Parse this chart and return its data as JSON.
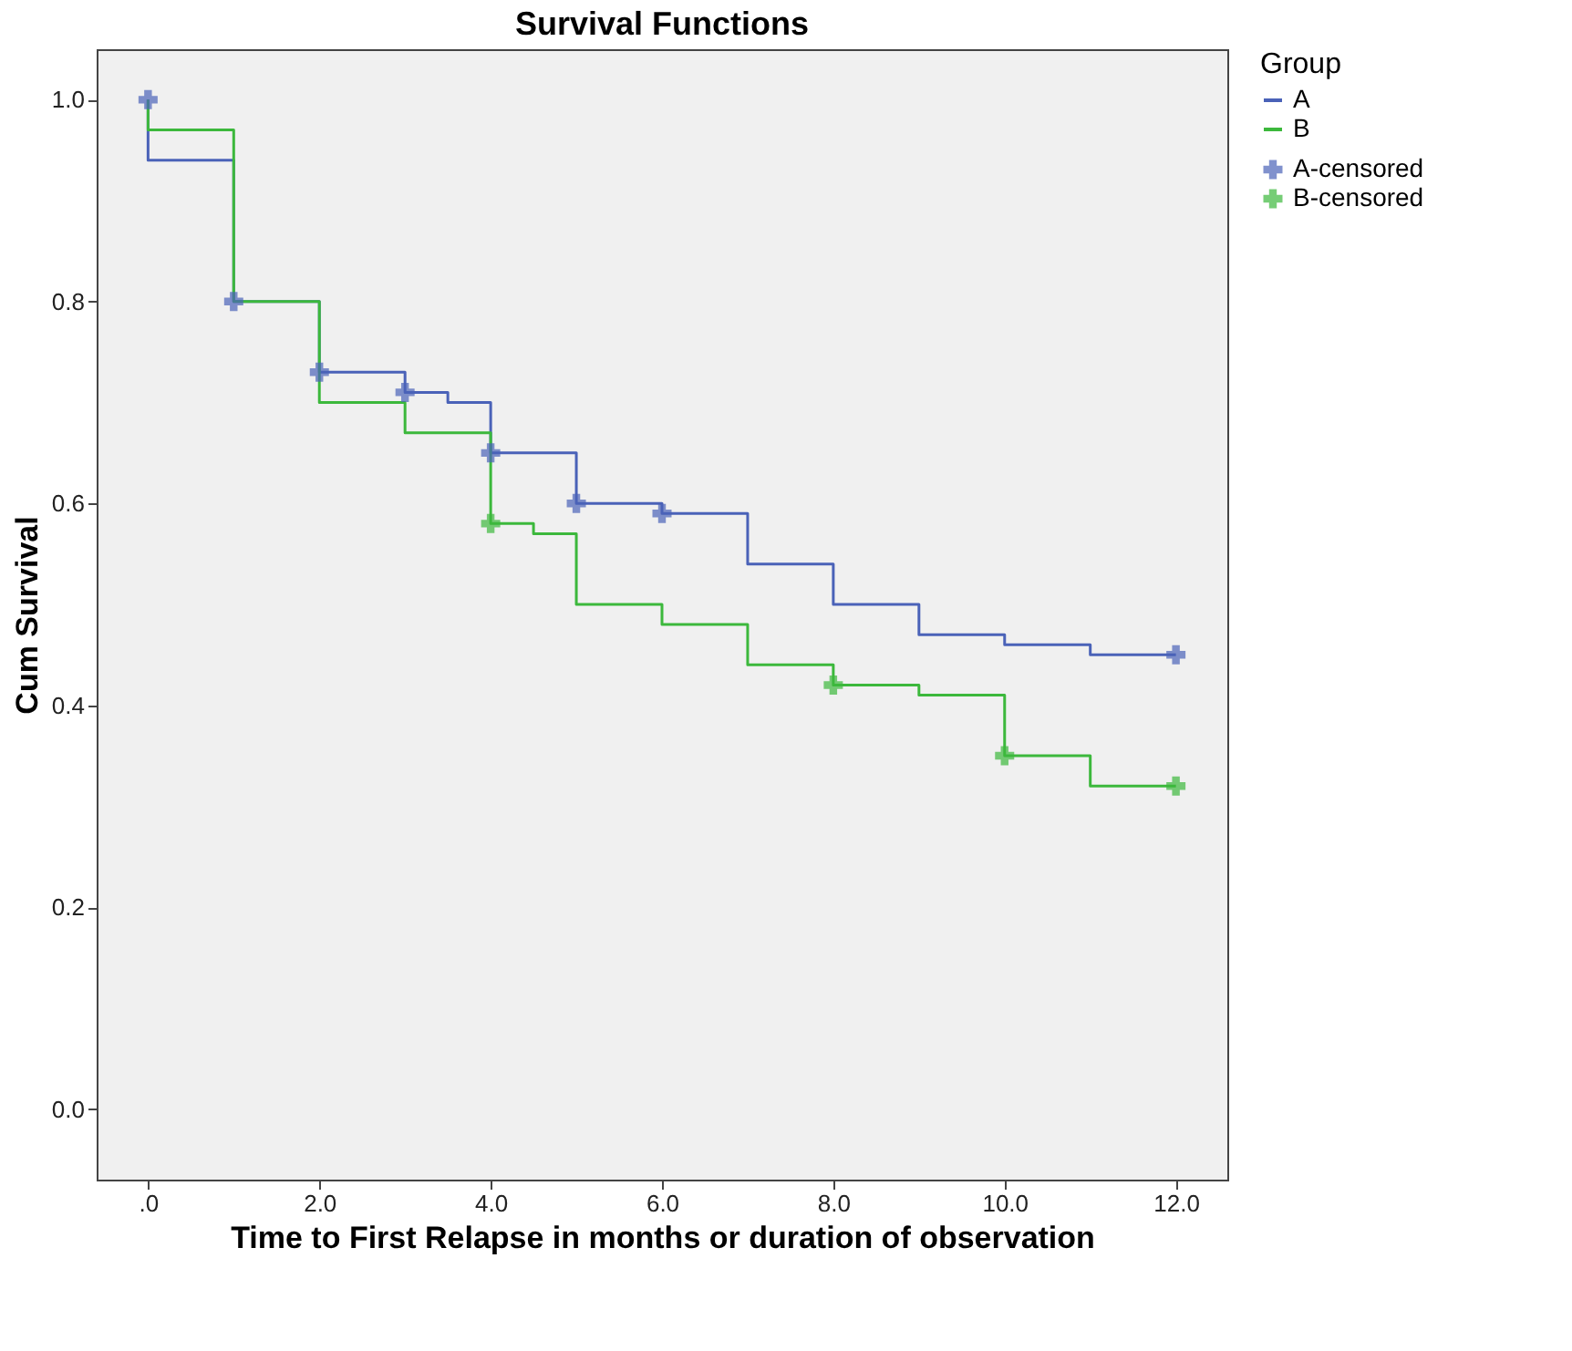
{
  "chart_data": {
    "type": "step",
    "title": "Survival Functions",
    "xlabel": "Time to First Relapse in months or duration of observation",
    "ylabel": "Cum Survival",
    "legend_title": "Group",
    "legend": "right",
    "grid": false,
    "xlim": [
      -0.6,
      12.6
    ],
    "ylim": [
      -0.07,
      1.05
    ],
    "xticks": [
      {
        "value": 0,
        "label": ".0"
      },
      {
        "value": 2,
        "label": "2.0"
      },
      {
        "value": 4,
        "label": "4.0"
      },
      {
        "value": 6,
        "label": "6.0"
      },
      {
        "value": 8,
        "label": "8.0"
      },
      {
        "value": 10,
        "label": "10.0"
      },
      {
        "value": 12,
        "label": "12.0"
      }
    ],
    "yticks": [
      {
        "value": 0,
        "label": "0.0"
      },
      {
        "value": 0.2,
        "label": "0.2"
      },
      {
        "value": 0.4,
        "label": "0.4"
      },
      {
        "value": 0.6,
        "label": "0.6"
      },
      {
        "value": 0.8,
        "label": "0.8"
      },
      {
        "value": 1.0,
        "label": "1.0"
      }
    ],
    "series": [
      {
        "name": "A",
        "type": "step",
        "color": "#4a62b8",
        "x": [
          0,
          0,
          1,
          2,
          3,
          3.5,
          4,
          5,
          6,
          7,
          8,
          9,
          10,
          11,
          12
        ],
        "values": [
          1.0,
          0.94,
          0.8,
          0.73,
          0.71,
          0.7,
          0.65,
          0.6,
          0.59,
          0.54,
          0.5,
          0.47,
          0.46,
          0.45,
          0.45
        ]
      },
      {
        "name": "B",
        "type": "step",
        "color": "#3cb83c",
        "x": [
          0,
          0,
          1,
          2,
          3,
          4,
          4.5,
          5,
          6,
          7,
          8,
          9,
          10,
          11,
          12
        ],
        "values": [
          1.0,
          0.97,
          0.8,
          0.7,
          0.67,
          0.58,
          0.57,
          0.5,
          0.48,
          0.44,
          0.42,
          0.41,
          0.35,
          0.32,
          0.32
        ]
      },
      {
        "name": "A-censored",
        "type": "scatter",
        "marker": "cross",
        "color": "#4a62b8",
        "x": [
          0,
          1,
          2,
          3,
          4,
          5,
          6,
          12
        ],
        "values": [
          1.0,
          0.8,
          0.73,
          0.71,
          0.65,
          0.6,
          0.59,
          0.45
        ]
      },
      {
        "name": "B-censored",
        "type": "scatter",
        "marker": "cross",
        "color": "#3cb83c",
        "x": [
          4,
          8,
          10,
          12
        ],
        "values": [
          0.58,
          0.42,
          0.35,
          0.32
        ]
      }
    ]
  }
}
